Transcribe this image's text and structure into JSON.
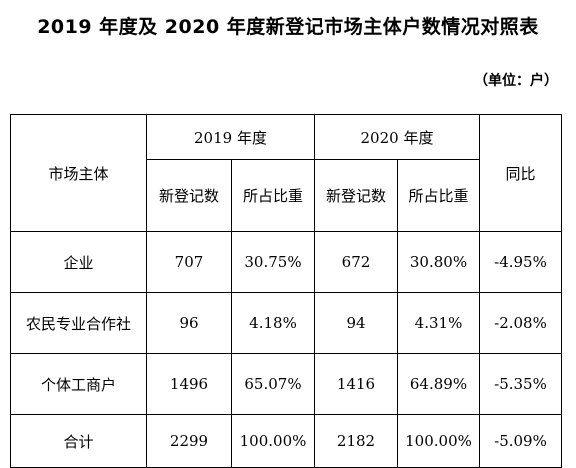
{
  "title": "2019 年度及 2020 年度新登记市场主体户数情况对照表",
  "unit": "（单位：户）",
  "table": {
    "corner": "市场主体",
    "year_2019": "2019 年度",
    "year_2020": "2020 年度",
    "ratio": "同比",
    "sub": [
      "新登记数",
      "所占比重",
      "新登记数",
      "所占比重"
    ],
    "rows": [
      {
        "name": "企业",
        "c2019": "707",
        "p2019": "30.75%",
        "c2020": "672",
        "p2020": "30.80%",
        "yoy": "-4.95%"
      },
      {
        "name": "农民专业合作社",
        "c2019": "96",
        "p2019": "4.18%",
        "c2020": "94",
        "p2020": "4.31%",
        "yoy": "-2.08%"
      },
      {
        "name": "个体工商户",
        "c2019": "1496",
        "p2019": "65.07%",
        "c2020": "1416",
        "p2020": "64.89%",
        "yoy": "-5.35%"
      },
      {
        "name": "合计",
        "c2019": "2299",
        "p2019": "100.00%",
        "c2020": "2182",
        "p2020": "100.00%",
        "yoy": "-5.09%"
      }
    ]
  }
}
